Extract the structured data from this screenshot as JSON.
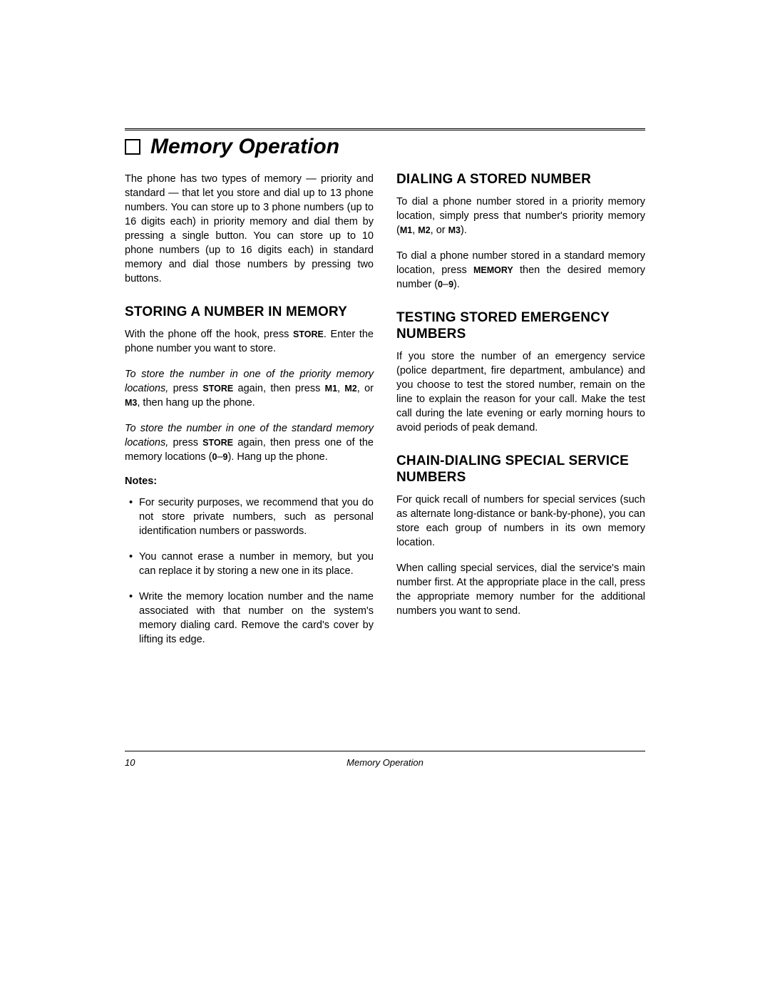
{
  "title": "Memory Operation",
  "intro": "The phone has two types of memory — priority and standard — that let you store and dial up to 13 phone numbers. You can store up to 3 phone numbers (up to 16 digits each) in priority memory and dial them by pressing a single button. You can store up to 10 phone numbers (up to 16 digits each) in standard memory and dial those numbers by pressing two buttons.",
  "left": {
    "h_store": "STORING A NUMBER IN MEMORY",
    "p_withphone_a": "With the phone off the hook, press ",
    "kw_store1": "STORE",
    "p_withphone_b": ". Enter the phone number you want to store.",
    "p_priority_a": "To store the number in one of the priority memory locations,",
    "p_priority_b": " press ",
    "kw_store2": "STORE",
    "p_priority_c": " again, then press ",
    "kw_m1": "M1",
    "sep1": ", ",
    "kw_m2": "M2",
    "sep2": ", or ",
    "kw_m3": "M3",
    "p_priority_d": ", then hang up the phone.",
    "p_standard_a": "To store the number in one of the standard memory locations,",
    "p_standard_b": " press ",
    "kw_store3": "STORE",
    "p_standard_c": " again, then press one of the memory locations (",
    "kw_09a": "0",
    "dash1": "–",
    "kw_09b": "9",
    "p_standard_d": "). Hang up the phone.",
    "notes_label": "Notes:",
    "notes": [
      "For security purposes, we recommend that you do not store private numbers, such as personal identification numbers or passwords.",
      "You cannot erase a number in memory, but you can replace it by storing a new one in its place.",
      "Write the memory location number and the name associated with that number on the system's memory dialing card. Remove the card's cover by lifting its edge."
    ]
  },
  "right": {
    "h_dial": "DIALING A STORED NUMBER",
    "p_dial1_a": "To dial a phone number stored in a priority memory location, simply press that number's priority memory (",
    "kw_m1b": "M1",
    "s1": ", ",
    "kw_m2b": "M2",
    "s2": ", or ",
    "kw_m3b": "M3",
    "p_dial1_b": ").",
    "p_dial2_a": "To dial a phone number stored in a standard memory location, press ",
    "kw_mem": "MEMORY",
    "p_dial2_b": " then the desired memory number (",
    "kw_0": "0",
    "dash2": "–",
    "kw_9": "9",
    "p_dial2_c": ").",
    "h_test": "TESTING STORED EMERGENCY NUMBERS",
    "p_test": "If you store the number of an emergency service (police department, fire department, ambulance) and you choose to test the stored number, remain on the line to explain the reason for your call. Make the test call during the late evening or early morning hours to avoid periods of peak demand.",
    "h_chain": "CHAIN-DIALING SPECIAL SERVICE NUMBERS",
    "p_chain1": "For quick recall of numbers for special services (such as alternate long-distance or bank-by-phone), you can store each group of numbers in its own memory location.",
    "p_chain2": "When calling special services, dial the service's main number first. At the appropriate place in the call, press the appropriate memory number for the additional numbers you want to send."
  },
  "footer": {
    "page_num": "10",
    "title": "Memory Operation"
  }
}
